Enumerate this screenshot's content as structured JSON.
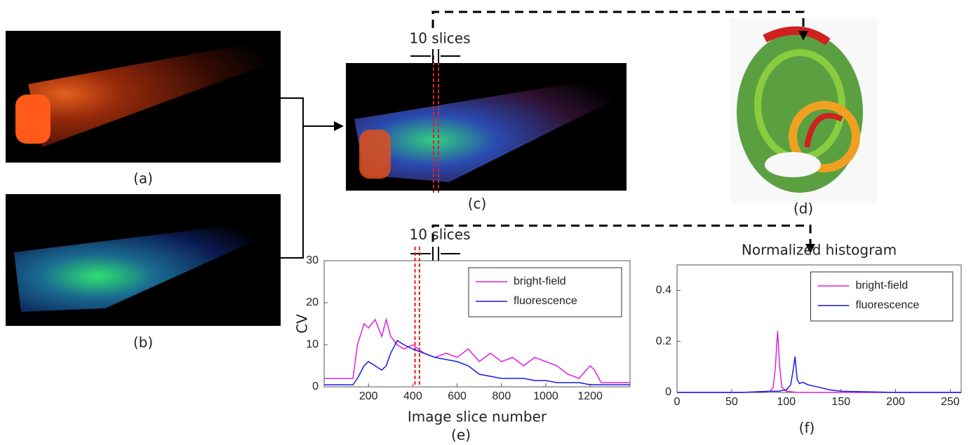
{
  "panels": {
    "a": "(a)",
    "b": "(b)",
    "c": "(c)",
    "d": "(d)",
    "e": "(e)",
    "f": "(f)"
  },
  "annotations": [
    "10 slices",
    "10 slices"
  ],
  "chart_data": [
    {
      "type": "line",
      "xlabel": "Image slice number",
      "ylabel": "CV",
      "x": [
        0,
        130,
        150,
        180,
        200,
        230,
        260,
        280,
        300,
        330,
        360,
        400,
        450,
        500,
        550,
        600,
        650,
        700,
        750,
        800,
        850,
        900,
        950,
        1000,
        1050,
        1100,
        1150,
        1200,
        1220,
        1250,
        1380
      ],
      "series": [
        {
          "name": "bright-field",
          "color": "#e020e0",
          "values": [
            2,
            2,
            10,
            15,
            14,
            16,
            12,
            16,
            12,
            10,
            9,
            10,
            8,
            7,
            8,
            7,
            9,
            6,
            8,
            6,
            7,
            5,
            7,
            6,
            5,
            3,
            2,
            5,
            4,
            1,
            1
          ]
        },
        {
          "name": "fluorescence",
          "color": "#1a1ae0",
          "values": [
            0.5,
            0.5,
            2,
            5,
            6,
            5,
            4,
            5,
            8,
            11,
            10,
            9,
            8,
            7,
            6.5,
            6,
            5,
            3,
            2.5,
            2,
            2,
            2,
            1.5,
            1.5,
            1,
            1,
            1,
            0.5,
            0.5,
            0.5,
            0.5
          ]
        }
      ],
      "xlim": [
        0,
        1380
      ],
      "xticks": [
        200,
        400,
        600,
        800,
        1000,
        1200
      ],
      "ylim": [
        0,
        30
      ],
      "yticks": [
        0,
        10,
        20,
        30
      ],
      "vlines": [
        410,
        430
      ],
      "vline_color": "#e02020",
      "legend": "upper right"
    },
    {
      "type": "line",
      "title": "Normalized histogram",
      "x": [
        0,
        60,
        85,
        88,
        90,
        92,
        94,
        96,
        100,
        104,
        106,
        108,
        110,
        112,
        115,
        120,
        130,
        140,
        150,
        200,
        260
      ],
      "series": [
        {
          "name": "bright-field",
          "color": "#e020e0",
          "values": [
            0,
            0,
            0.005,
            0.02,
            0.1,
            0.24,
            0.1,
            0.02,
            0.005,
            0.003,
            0.002,
            0.001,
            0,
            0,
            0,
            0,
            0,
            0,
            0,
            0,
            0
          ]
        },
        {
          "name": "fluorescence",
          "color": "#1a1ae0",
          "values": [
            0,
            0,
            0.005,
            0.005,
            0.005,
            0.005,
            0.005,
            0.008,
            0.01,
            0.03,
            0.08,
            0.14,
            0.05,
            0.035,
            0.04,
            0.03,
            0.02,
            0.01,
            0.005,
            0,
            0
          ]
        }
      ],
      "xlim": [
        0,
        260
      ],
      "xticks": [
        0,
        50,
        100,
        150,
        200,
        250
      ],
      "ylim": [
        0,
        0.5
      ],
      "yticks": [
        0,
        0.2,
        0.4
      ],
      "legend": "upper right"
    }
  ]
}
